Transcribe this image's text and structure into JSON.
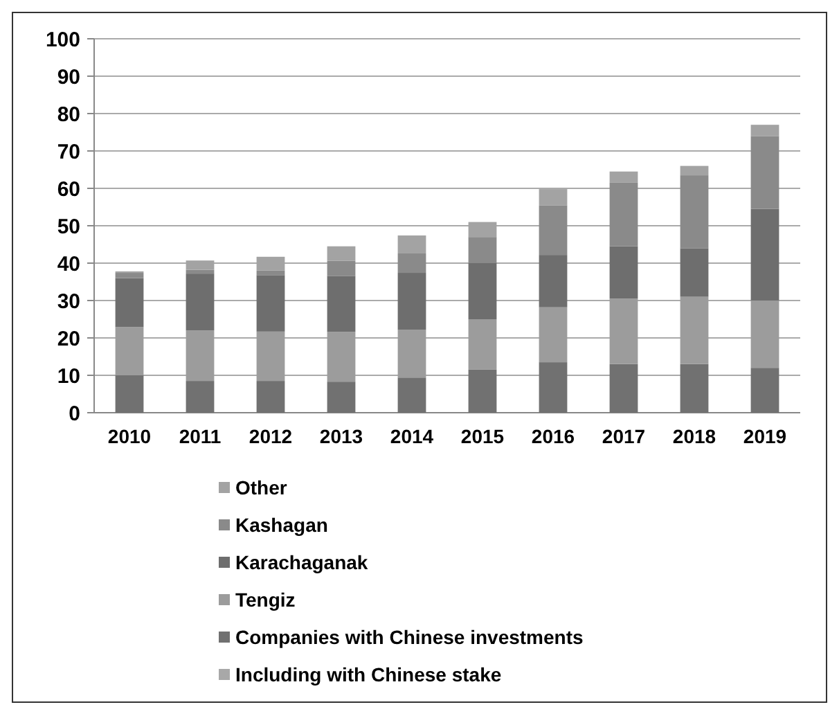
{
  "chart_data": {
    "type": "bar",
    "stacked": true,
    "categories": [
      "2010",
      "2011",
      "2012",
      "2013",
      "2014",
      "2015",
      "2016",
      "2017",
      "2018",
      "2019"
    ],
    "series": [
      {
        "name": "Other",
        "color": "#a3a3a3",
        "values": [
          0.4,
          2.5,
          3.7,
          3.9,
          4.8,
          4,
          4.4,
          3,
          2.5,
          3
        ]
      },
      {
        "name": "Kashagan",
        "color": "#8a8a8a",
        "values": [
          1.4,
          1,
          1.2,
          4,
          5.2,
          7,
          13.2,
          17,
          19.5,
          19.5
        ]
      },
      {
        "name": "Karachaganak",
        "color": "#6e6e6e",
        "values": [
          13.1,
          15.2,
          15.1,
          15,
          15.2,
          15,
          14,
          14,
          13,
          24.5
        ]
      },
      {
        "name": "Tengiz",
        "color": "#9c9c9c",
        "values": [
          12.9,
          13.5,
          13.2,
          13.3,
          12.8,
          13.5,
          14.7,
          17.5,
          18,
          18
        ]
      },
      {
        "name": "Companies with Chinese investments",
        "color": "#717171",
        "values": [
          10,
          8.5,
          8.5,
          8.3,
          9.4,
          11.5,
          13.5,
          13,
          13,
          12
        ]
      },
      {
        "name": "Including with Chinese stake",
        "color": "#a8a8a8",
        "values": [
          null,
          null,
          null,
          null,
          null,
          null,
          null,
          null,
          null,
          null
        ]
      }
    ],
    "ylim": [
      0,
      100
    ],
    "yticks": [
      0,
      10,
      20,
      30,
      40,
      50,
      60,
      70,
      80,
      90,
      100
    ],
    "grid": "y",
    "legend": "bottom"
  }
}
